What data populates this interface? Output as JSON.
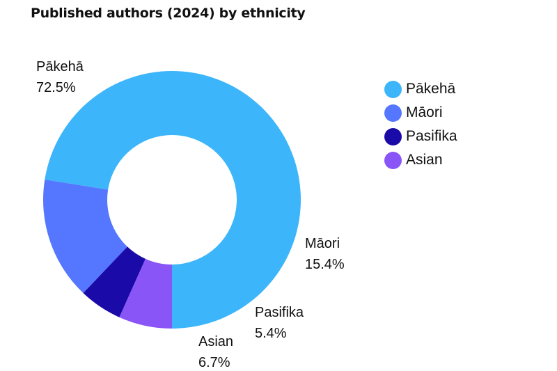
{
  "chart_data": {
    "type": "pie",
    "title": "Published authors (2024) by ethnicity",
    "categories": [
      "Pākehā",
      "Māori",
      "Pasifika",
      "Asian"
    ],
    "values": [
      72.5,
      15.4,
      5.4,
      6.7
    ],
    "value_labels": [
      "72.5%",
      "15.4%",
      "5.4%",
      "6.7%"
    ],
    "unit": "%",
    "colors": [
      "#3db5fa",
      "#5577ff",
      "#1a0aa8",
      "#8a55f7"
    ],
    "donut": true,
    "legend_position": "right",
    "slice_order": "counter-clockwise from bottom"
  }
}
